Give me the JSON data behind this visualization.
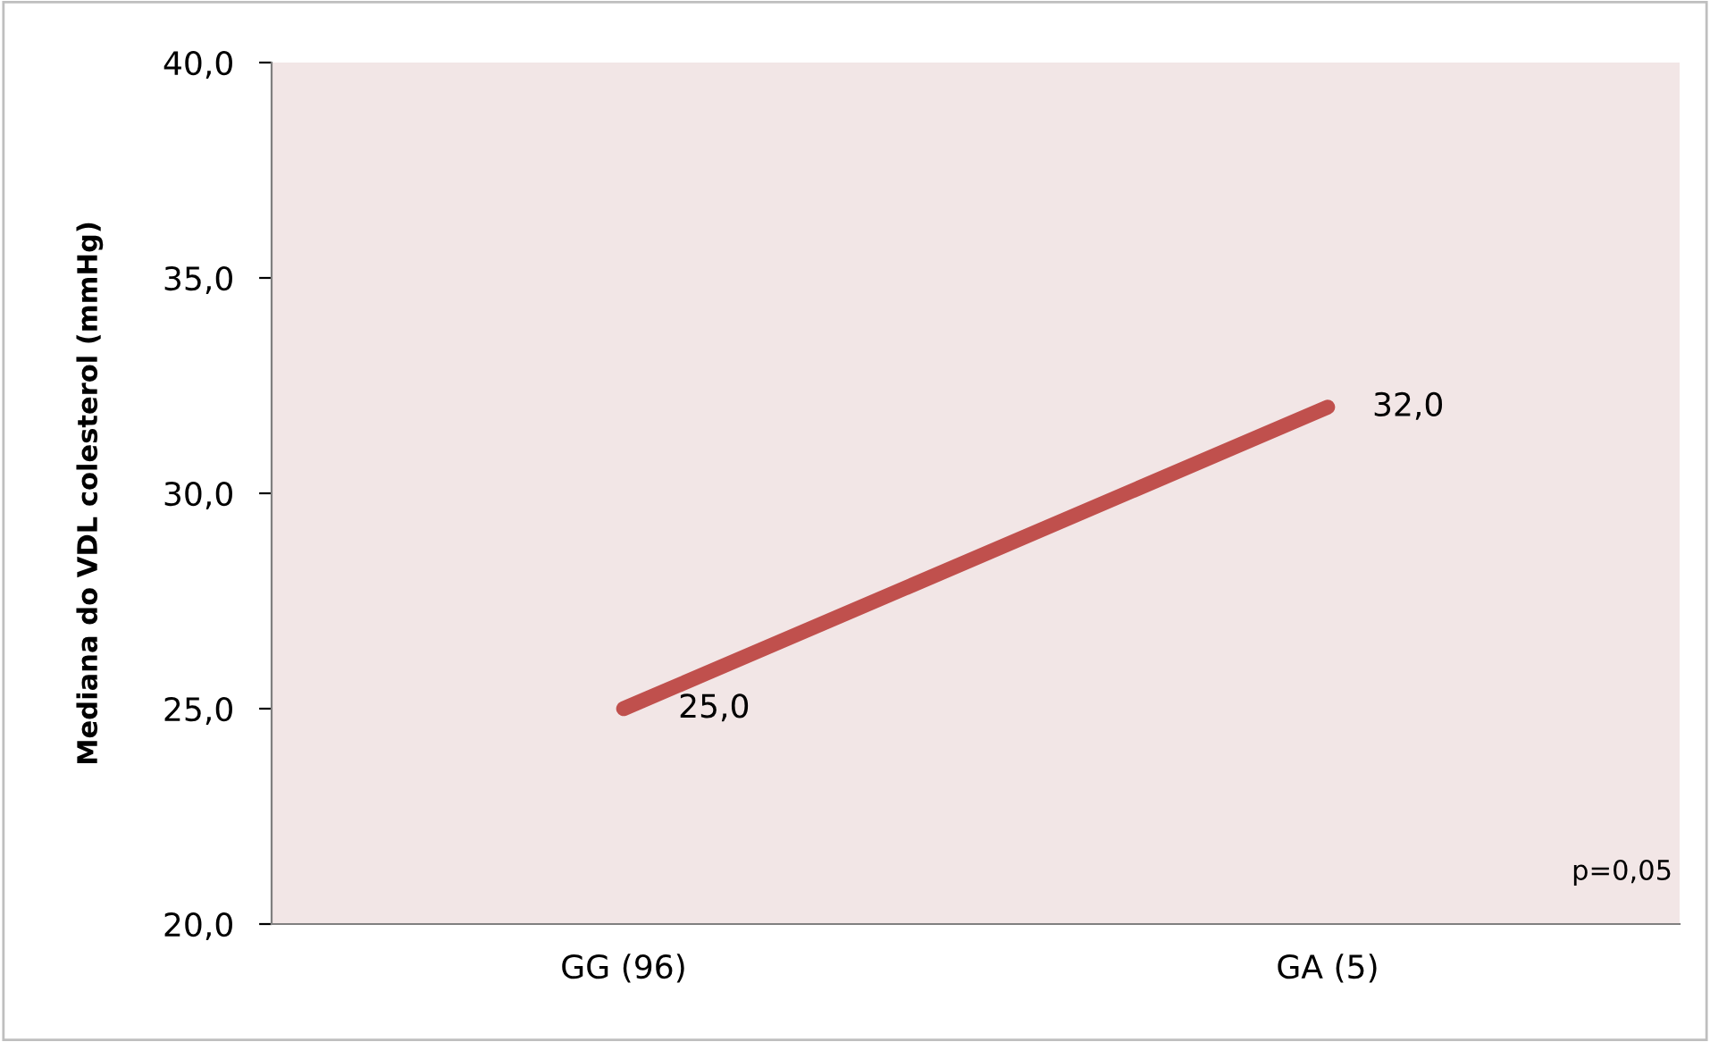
{
  "chart_data": {
    "type": "line",
    "ylabel": "Mediana do VDL colesterol (mmHg)",
    "categories": [
      "GG (96)",
      "GA (5)"
    ],
    "series": [
      {
        "color": "#c0504d",
        "values": [
          25.0,
          32.0
        ],
        "value_labels": [
          "25,0",
          "32,0"
        ]
      }
    ],
    "ylim": [
      20,
      40
    ],
    "yticks": [
      {
        "value": 20,
        "label": "20,0"
      },
      {
        "value": 25,
        "label": "25,0"
      },
      {
        "value": 30,
        "label": "30,0"
      },
      {
        "value": 35,
        "label": "35,0"
      },
      {
        "value": 40,
        "label": "40,0"
      }
    ],
    "grid": false,
    "legend": false,
    "marker": "none",
    "line_style": "solid",
    "annotations": [
      "p=0,05"
    ]
  }
}
